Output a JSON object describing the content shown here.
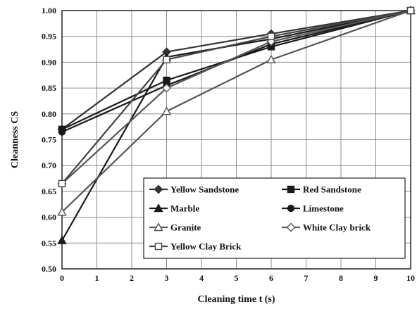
{
  "chart_data": {
    "type": "line",
    "xlabel": "Cleaning time t (s)",
    "ylabel": "Cleanness CS",
    "xlim": [
      0,
      10
    ],
    "ylim": [
      0.5,
      1.0
    ],
    "xticks": [
      0,
      1,
      2,
      3,
      4,
      5,
      6,
      7,
      8,
      9,
      10
    ],
    "yticks": [
      "0.50",
      "0.55",
      "0.60",
      "0.65",
      "0.70",
      "0.75",
      "0.80",
      "0.85",
      "0.90",
      "0.95",
      "1.00"
    ],
    "grid": true,
    "legend_position": "bottom-right",
    "series": [
      {
        "name": "Yellow Sandstone",
        "marker": "diamond",
        "color": "#333333",
        "x": [
          0,
          3,
          6,
          10
        ],
        "y": [
          0.77,
          0.92,
          0.955,
          1.0
        ]
      },
      {
        "name": "Red Sandstone",
        "marker": "square",
        "color": "#1a1a1a",
        "x": [
          0,
          3,
          6,
          10
        ],
        "y": [
          0.77,
          0.865,
          0.93,
          1.0
        ]
      },
      {
        "name": "Marble",
        "marker": "triangle",
        "color": "#1a1a1a",
        "x": [
          0,
          3,
          6,
          10
        ],
        "y": [
          0.555,
          0.91,
          0.945,
          1.0
        ]
      },
      {
        "name": "Limestone",
        "marker": "circle",
        "color": "#1a1a1a",
        "x": [
          0,
          3,
          6,
          10
        ],
        "y": [
          0.765,
          0.855,
          0.935,
          1.0
        ]
      },
      {
        "name": "Granite",
        "marker": "triangle-open",
        "color": "#555555",
        "x": [
          0,
          3,
          6,
          10
        ],
        "y": [
          0.61,
          0.805,
          0.905,
          1.0
        ]
      },
      {
        "name": "White Clay brick",
        "marker": "diamond-open",
        "color": "#555555",
        "x": [
          0,
          3,
          6,
          10
        ],
        "y": [
          0.665,
          0.85,
          0.94,
          1.0
        ]
      },
      {
        "name": "Yellow Clay Brick",
        "marker": "square-open",
        "color": "#444444",
        "x": [
          0,
          3,
          6,
          10
        ],
        "y": [
          0.665,
          0.905,
          0.95,
          1.0
        ]
      }
    ]
  }
}
